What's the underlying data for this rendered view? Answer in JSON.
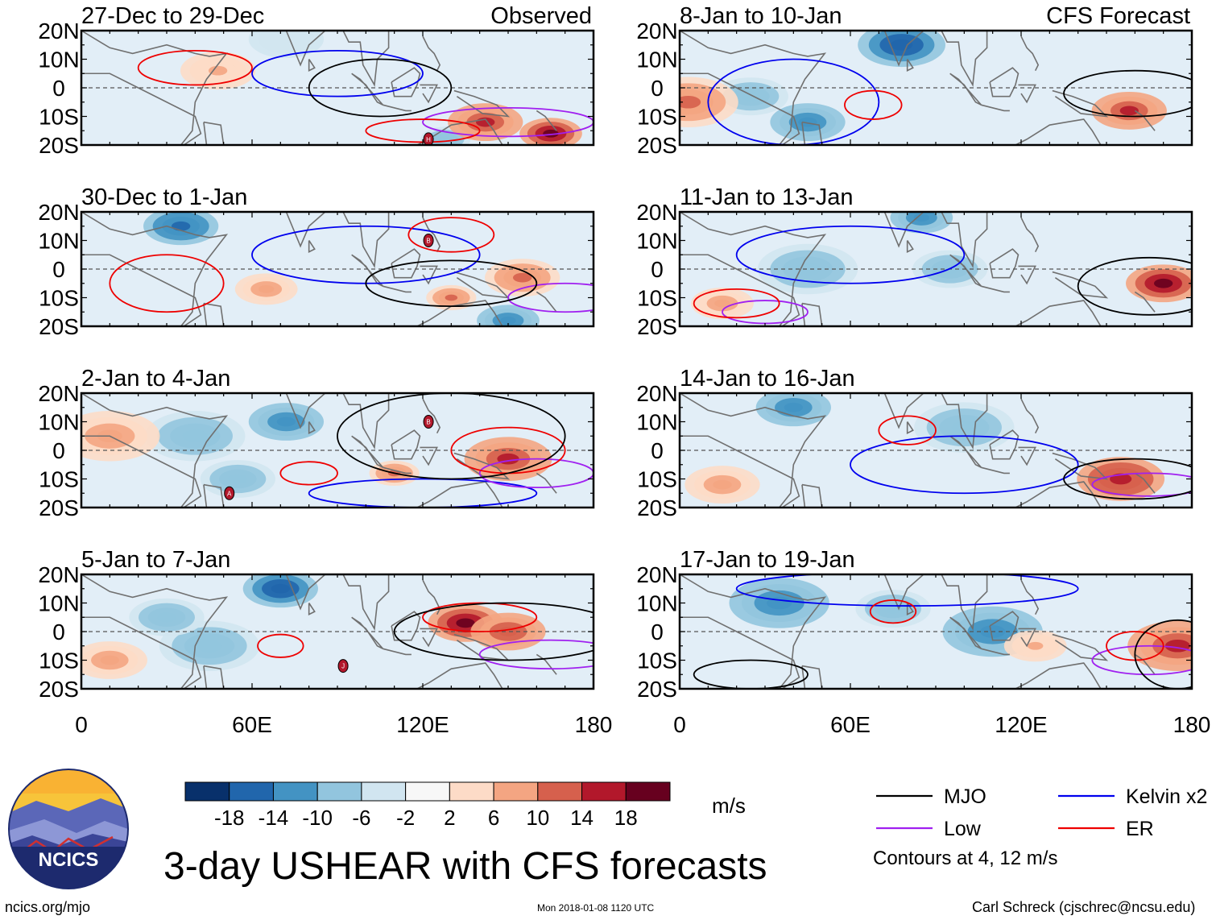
{
  "title": "3-day USHEAR with CFS forecasts",
  "left_column_label": "Observed",
  "right_column_label": "CFS Forecast",
  "footer": {
    "site": "ncics.org/mjo",
    "timestamp": "Mon 2018-01-08 1120 UTC",
    "credit": "Carl Schreck (cjschrec@ncsu.edu)",
    "logo_text": "NCICS"
  },
  "colorbar": {
    "unit": "m/s",
    "tick_labels": [
      "-18",
      "-14",
      "-10",
      "-6",
      "-2",
      "2",
      "6",
      "10",
      "14",
      "18"
    ],
    "colors": [
      "#08306b",
      "#2166ac",
      "#4393c3",
      "#92c5de",
      "#d1e5f0",
      "#f7f7f7",
      "#fddbc7",
      "#f4a582",
      "#d6604d",
      "#b2182b",
      "#67001f"
    ]
  },
  "legend": {
    "items": [
      {
        "label": "MJO",
        "color": "#000000"
      },
      {
        "label": "Kelvin x2",
        "color": "#0000ee"
      },
      {
        "label": "Low",
        "color": "#a020f0"
      },
      {
        "label": "ER",
        "color": "#ee0000"
      }
    ],
    "note": "Contours at 4, 12 m/s"
  },
  "chart_data": {
    "type": "heatmap",
    "variable": "USHEAR",
    "x_ticks": [
      "0",
      "60E",
      "120E",
      "180"
    ],
    "y_ticks": [
      "20N",
      "10N",
      "0",
      "10S",
      "20S"
    ],
    "x_range": [
      0,
      180
    ],
    "y_range": [
      -20,
      20
    ],
    "panels": [
      {
        "period": "27-Dec to 29-Dec",
        "type": "observed",
        "pos": [
          [
            48,
            6,
            6,
            6
          ],
          [
            142,
            -12,
            14,
            6
          ],
          [
            165,
            -16,
            18,
            5
          ]
        ],
        "neg": [
          [
            72,
            17,
            -6,
            6
          ],
          [
            128,
            -18,
            -10,
            4
          ]
        ],
        "mjo": [
          [
            105,
            0,
            25,
            10
          ]
        ],
        "kelvin": [
          [
            90,
            5,
            30,
            8
          ]
        ],
        "er": [
          [
            40,
            7,
            20,
            6
          ],
          [
            120,
            -15,
            20,
            4
          ]
        ],
        "low": [
          [
            150,
            -12,
            30,
            5
          ]
        ],
        "storms": [
          {
            "label": "H",
            "lon": 122,
            "lat": -18
          }
        ]
      },
      {
        "period": "8-Jan to 10-Jan",
        "type": "forecast",
        "pos": [
          [
            3,
            -5,
            10,
            8
          ],
          [
            158,
            -8,
            14,
            6
          ]
        ],
        "neg": [
          [
            78,
            15,
            -18,
            7
          ],
          [
            45,
            -12,
            -14,
            6
          ],
          [
            25,
            -3,
            -10,
            6
          ]
        ],
        "mjo": [
          [
            160,
            -2,
            25,
            8
          ]
        ],
        "kelvin": [
          [
            40,
            -5,
            30,
            15
          ]
        ],
        "er": [
          [
            68,
            -6,
            10,
            5
          ]
        ],
        "low": [],
        "storms": []
      },
      {
        "period": "30-Dec to 1-Jan",
        "type": "observed",
        "pos": [
          [
            65,
            -7,
            8,
            5
          ],
          [
            155,
            -3,
            10,
            6
          ],
          [
            130,
            -10,
            10,
            4
          ]
        ],
        "neg": [
          [
            35,
            15,
            -16,
            6
          ],
          [
            150,
            -18,
            -14,
            5
          ]
        ],
        "mjo": [
          [
            130,
            -5,
            30,
            8
          ]
        ],
        "kelvin": [
          [
            100,
            5,
            40,
            10
          ]
        ],
        "er": [
          [
            30,
            -5,
            20,
            10
          ],
          [
            130,
            12,
            15,
            6
          ]
        ],
        "low": [
          [
            170,
            -10,
            20,
            5
          ]
        ],
        "storms": [
          {
            "label": "B",
            "lon": 122,
            "lat": 10
          }
        ]
      },
      {
        "period": "11-Jan to 13-Jan",
        "type": "forecast",
        "pos": [
          [
            170,
            -5,
            18,
            6
          ],
          [
            15,
            -12,
            8,
            5
          ]
        ],
        "neg": [
          [
            85,
            18,
            -12,
            5
          ],
          [
            45,
            0,
            -10,
            8
          ],
          [
            95,
            0,
            -10,
            6
          ]
        ],
        "mjo": [
          [
            165,
            -6,
            25,
            10
          ]
        ],
        "kelvin": [
          [
            60,
            5,
            40,
            10
          ]
        ],
        "er": [
          [
            20,
            -12,
            15,
            5
          ]
        ],
        "low": [
          [
            30,
            -15,
            15,
            4
          ]
        ],
        "storms": []
      },
      {
        "period": "2-Jan to 4-Jan",
        "type": "observed",
        "pos": [
          [
            150,
            -3,
            14,
            7
          ],
          [
            10,
            5,
            8,
            8
          ],
          [
            110,
            -8,
            10,
            4
          ]
        ],
        "neg": [
          [
            40,
            5,
            -10,
            8
          ],
          [
            72,
            10,
            -14,
            6
          ],
          [
            55,
            -10,
            -10,
            6
          ]
        ],
        "mjo": [
          [
            130,
            5,
            40,
            15
          ]
        ],
        "kelvin": [
          [
            120,
            -15,
            40,
            5
          ]
        ],
        "er": [
          [
            80,
            -8,
            10,
            4
          ],
          [
            150,
            0,
            20,
            8
          ]
        ],
        "low": [
          [
            160,
            -8,
            20,
            5
          ]
        ],
        "storms": [
          {
            "label": "B",
            "lon": 122,
            "lat": 10
          },
          {
            "label": "A",
            "lon": 52,
            "lat": -15
          }
        ]
      },
      {
        "period": "14-Jan to 16-Jan",
        "type": "forecast",
        "pos": [
          [
            155,
            -10,
            16,
            7
          ],
          [
            15,
            -12,
            8,
            6
          ]
        ],
        "neg": [
          [
            40,
            15,
            -14,
            6
          ],
          [
            100,
            8,
            -10,
            8
          ]
        ],
        "mjo": [
          [
            160,
            -10,
            25,
            7
          ]
        ],
        "kelvin": [
          [
            100,
            -5,
            40,
            10
          ]
        ],
        "er": [
          [
            80,
            7,
            10,
            5
          ]
        ],
        "low": [
          [
            165,
            -12,
            20,
            4
          ]
        ],
        "storms": []
      },
      {
        "period": "5-Jan to 7-Jan",
        "type": "observed",
        "pos": [
          [
            135,
            3,
            18,
            6
          ],
          [
            10,
            -10,
            8,
            6
          ],
          [
            150,
            0,
            12,
            6
          ]
        ],
        "neg": [
          [
            70,
            15,
            -18,
            6
          ],
          [
            45,
            -5,
            -10,
            8
          ],
          [
            30,
            5,
            -10,
            6
          ]
        ],
        "mjo": [
          [
            150,
            0,
            40,
            10
          ]
        ],
        "kelvin": [],
        "er": [
          [
            70,
            -5,
            8,
            4
          ],
          [
            140,
            5,
            20,
            5
          ]
        ],
        "low": [
          [
            165,
            -8,
            25,
            5
          ]
        ],
        "storms": [
          {
            "label": "J",
            "lon": 92,
            "lat": -12
          }
        ]
      },
      {
        "period": "17-Jan to 19-Jan",
        "type": "forecast",
        "pos": [
          [
            175,
            -5,
            14,
            8
          ],
          [
            125,
            -5,
            6,
            5
          ]
        ],
        "neg": [
          [
            35,
            10,
            -12,
            8
          ],
          [
            110,
            0,
            -12,
            8
          ],
          [
            75,
            8,
            -10,
            6
          ]
        ],
        "mjo": [
          [
            175,
            -8,
            15,
            12
          ],
          [
            25,
            -15,
            20,
            5
          ]
        ],
        "kelvin": [
          [
            80,
            15,
            60,
            6
          ]
        ],
        "er": [
          [
            75,
            7,
            8,
            4
          ],
          [
            160,
            -5,
            10,
            5
          ]
        ],
        "low": [
          [
            165,
            -10,
            20,
            5
          ]
        ],
        "storms": []
      }
    ]
  }
}
